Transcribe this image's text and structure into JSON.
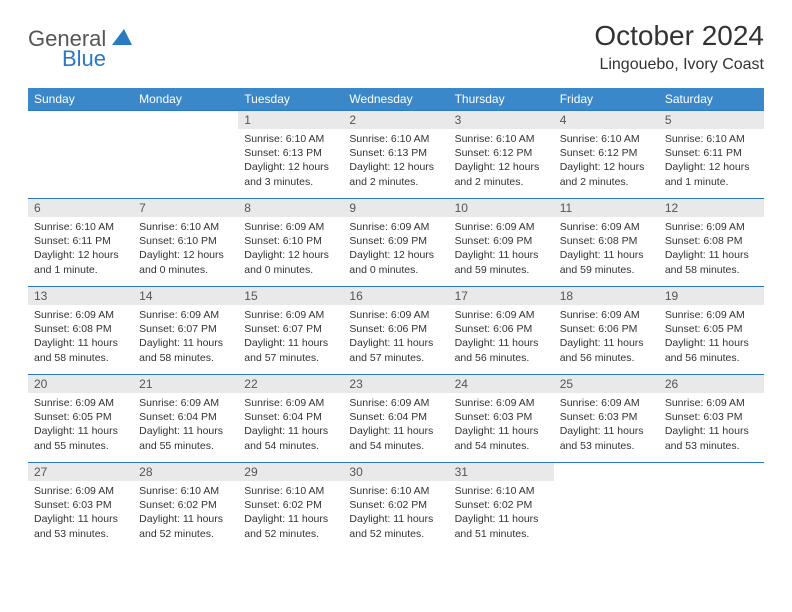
{
  "brand": {
    "part1": "General",
    "part2": "Blue"
  },
  "title": "October 2024",
  "location": "Lingouebo, Ivory Coast",
  "colors": {
    "header_bg": "#3a87c9",
    "row_sep": "#2b79c2",
    "daynum_bg": "#e9e9e9",
    "brand_blue": "#2b79c2"
  },
  "weekdays": [
    "Sunday",
    "Monday",
    "Tuesday",
    "Wednesday",
    "Thursday",
    "Friday",
    "Saturday"
  ],
  "weeks": [
    [
      null,
      null,
      {
        "d": "1",
        "sr": "Sunrise: 6:10 AM",
        "ss": "Sunset: 6:13 PM",
        "dl": "Daylight: 12 hours and 3 minutes."
      },
      {
        "d": "2",
        "sr": "Sunrise: 6:10 AM",
        "ss": "Sunset: 6:13 PM",
        "dl": "Daylight: 12 hours and 2 minutes."
      },
      {
        "d": "3",
        "sr": "Sunrise: 6:10 AM",
        "ss": "Sunset: 6:12 PM",
        "dl": "Daylight: 12 hours and 2 minutes."
      },
      {
        "d": "4",
        "sr": "Sunrise: 6:10 AM",
        "ss": "Sunset: 6:12 PM",
        "dl": "Daylight: 12 hours and 2 minutes."
      },
      {
        "d": "5",
        "sr": "Sunrise: 6:10 AM",
        "ss": "Sunset: 6:11 PM",
        "dl": "Daylight: 12 hours and 1 minute."
      }
    ],
    [
      {
        "d": "6",
        "sr": "Sunrise: 6:10 AM",
        "ss": "Sunset: 6:11 PM",
        "dl": "Daylight: 12 hours and 1 minute."
      },
      {
        "d": "7",
        "sr": "Sunrise: 6:10 AM",
        "ss": "Sunset: 6:10 PM",
        "dl": "Daylight: 12 hours and 0 minutes."
      },
      {
        "d": "8",
        "sr": "Sunrise: 6:09 AM",
        "ss": "Sunset: 6:10 PM",
        "dl": "Daylight: 12 hours and 0 minutes."
      },
      {
        "d": "9",
        "sr": "Sunrise: 6:09 AM",
        "ss": "Sunset: 6:09 PM",
        "dl": "Daylight: 12 hours and 0 minutes."
      },
      {
        "d": "10",
        "sr": "Sunrise: 6:09 AM",
        "ss": "Sunset: 6:09 PM",
        "dl": "Daylight: 11 hours and 59 minutes."
      },
      {
        "d": "11",
        "sr": "Sunrise: 6:09 AM",
        "ss": "Sunset: 6:08 PM",
        "dl": "Daylight: 11 hours and 59 minutes."
      },
      {
        "d": "12",
        "sr": "Sunrise: 6:09 AM",
        "ss": "Sunset: 6:08 PM",
        "dl": "Daylight: 11 hours and 58 minutes."
      }
    ],
    [
      {
        "d": "13",
        "sr": "Sunrise: 6:09 AM",
        "ss": "Sunset: 6:08 PM",
        "dl": "Daylight: 11 hours and 58 minutes."
      },
      {
        "d": "14",
        "sr": "Sunrise: 6:09 AM",
        "ss": "Sunset: 6:07 PM",
        "dl": "Daylight: 11 hours and 58 minutes."
      },
      {
        "d": "15",
        "sr": "Sunrise: 6:09 AM",
        "ss": "Sunset: 6:07 PM",
        "dl": "Daylight: 11 hours and 57 minutes."
      },
      {
        "d": "16",
        "sr": "Sunrise: 6:09 AM",
        "ss": "Sunset: 6:06 PM",
        "dl": "Daylight: 11 hours and 57 minutes."
      },
      {
        "d": "17",
        "sr": "Sunrise: 6:09 AM",
        "ss": "Sunset: 6:06 PM",
        "dl": "Daylight: 11 hours and 56 minutes."
      },
      {
        "d": "18",
        "sr": "Sunrise: 6:09 AM",
        "ss": "Sunset: 6:06 PM",
        "dl": "Daylight: 11 hours and 56 minutes."
      },
      {
        "d": "19",
        "sr": "Sunrise: 6:09 AM",
        "ss": "Sunset: 6:05 PM",
        "dl": "Daylight: 11 hours and 56 minutes."
      }
    ],
    [
      {
        "d": "20",
        "sr": "Sunrise: 6:09 AM",
        "ss": "Sunset: 6:05 PM",
        "dl": "Daylight: 11 hours and 55 minutes."
      },
      {
        "d": "21",
        "sr": "Sunrise: 6:09 AM",
        "ss": "Sunset: 6:04 PM",
        "dl": "Daylight: 11 hours and 55 minutes."
      },
      {
        "d": "22",
        "sr": "Sunrise: 6:09 AM",
        "ss": "Sunset: 6:04 PM",
        "dl": "Daylight: 11 hours and 54 minutes."
      },
      {
        "d": "23",
        "sr": "Sunrise: 6:09 AM",
        "ss": "Sunset: 6:04 PM",
        "dl": "Daylight: 11 hours and 54 minutes."
      },
      {
        "d": "24",
        "sr": "Sunrise: 6:09 AM",
        "ss": "Sunset: 6:03 PM",
        "dl": "Daylight: 11 hours and 54 minutes."
      },
      {
        "d": "25",
        "sr": "Sunrise: 6:09 AM",
        "ss": "Sunset: 6:03 PM",
        "dl": "Daylight: 11 hours and 53 minutes."
      },
      {
        "d": "26",
        "sr": "Sunrise: 6:09 AM",
        "ss": "Sunset: 6:03 PM",
        "dl": "Daylight: 11 hours and 53 minutes."
      }
    ],
    [
      {
        "d": "27",
        "sr": "Sunrise: 6:09 AM",
        "ss": "Sunset: 6:03 PM",
        "dl": "Daylight: 11 hours and 53 minutes."
      },
      {
        "d": "28",
        "sr": "Sunrise: 6:10 AM",
        "ss": "Sunset: 6:02 PM",
        "dl": "Daylight: 11 hours and 52 minutes."
      },
      {
        "d": "29",
        "sr": "Sunrise: 6:10 AM",
        "ss": "Sunset: 6:02 PM",
        "dl": "Daylight: 11 hours and 52 minutes."
      },
      {
        "d": "30",
        "sr": "Sunrise: 6:10 AM",
        "ss": "Sunset: 6:02 PM",
        "dl": "Daylight: 11 hours and 52 minutes."
      },
      {
        "d": "31",
        "sr": "Sunrise: 6:10 AM",
        "ss": "Sunset: 6:02 PM",
        "dl": "Daylight: 11 hours and 51 minutes."
      },
      null,
      null
    ]
  ]
}
